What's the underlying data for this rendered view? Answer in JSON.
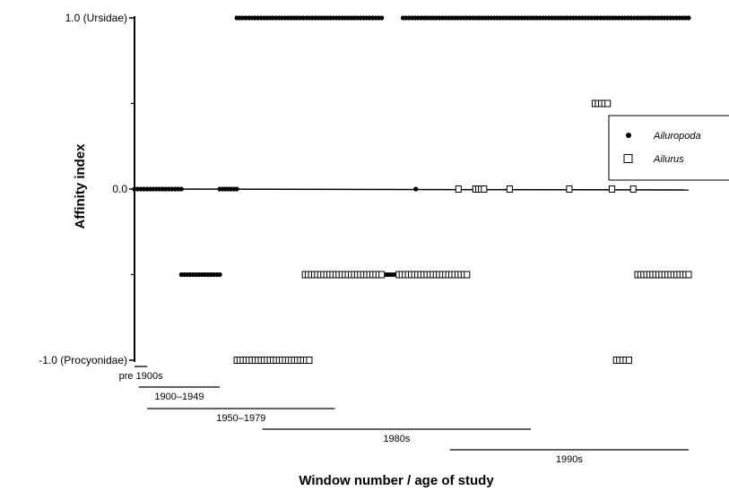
{
  "chart_data": {
    "type": "scatter",
    "xlabel": "Window number / age of study",
    "ylabel": "Affinity index",
    "ylim": [
      -1.0,
      1.0
    ],
    "x_range": [
      0,
      130
    ],
    "y_ticks": [
      {
        "value": 1.0,
        "label": "1.0 (Ursidae)"
      },
      {
        "value": 0.0,
        "label": "0.0"
      },
      {
        "value": -1.0,
        "label": "-1.0 (Procyonidae)"
      }
    ],
    "y_minor_ticks": [
      0.5,
      -0.5
    ],
    "legend_position": "right",
    "series": [
      {
        "name": "Ailuropoda",
        "marker": "filled-circle",
        "color": "#000000",
        "points": [
          {
            "x_start": 0,
            "x_end": 11,
            "y": 0.0
          },
          {
            "x_start": 11,
            "x_end": 20,
            "y": -0.5
          },
          {
            "x_start": 20,
            "x_end": 24,
            "y": 0.0
          },
          {
            "x_start": 24,
            "x_end": 58,
            "y": 1.0
          },
          {
            "x_start": 58,
            "x_end": 62,
            "y": -0.5
          },
          {
            "x_start": 63,
            "x_end": 68,
            "y": 1.0
          },
          {
            "x_start": 66,
            "x_end": 66,
            "y": 0.0
          },
          {
            "x_start": 68,
            "x_end": 130,
            "y": 1.0
          }
        ]
      },
      {
        "name": "Ailurus",
        "marker": "open-square",
        "color": "#000000",
        "points": [
          {
            "x_start": 24,
            "x_end": 41,
            "y": -1.0
          },
          {
            "x_start": 40,
            "x_end": 58,
            "y": -0.5
          },
          {
            "x_start": 62,
            "x_end": 78,
            "y": -0.5
          },
          {
            "x_start": 76,
            "x_end": 76,
            "y": 0.0
          },
          {
            "x_start": 80,
            "x_end": 82,
            "y": 0.0
          },
          {
            "x_start": 88,
            "x_end": 88,
            "y": 0.0
          },
          {
            "x_start": 102,
            "x_end": 102,
            "y": 0.0
          },
          {
            "x_start": 108,
            "x_end": 111,
            "y": 0.5
          },
          {
            "x_start": 112,
            "x_end": 112,
            "y": 0.0
          },
          {
            "x_start": 113,
            "x_end": 116,
            "y": -1.0
          },
          {
            "x_start": 117,
            "x_end": 117,
            "y": 0.0
          },
          {
            "x_start": 118,
            "x_end": 130,
            "y": -0.5
          }
        ]
      }
    ],
    "periods": [
      {
        "label": "pre 1900s",
        "x_start": 0,
        "x_end": 3
      },
      {
        "label": "1900–1949",
        "x_start": 1,
        "x_end": 20
      },
      {
        "label": "1950–1979",
        "x_start": 3,
        "x_end": 47
      },
      {
        "label": "1980s",
        "x_start": 30,
        "x_end": 93
      },
      {
        "label": "1990s",
        "x_start": 74,
        "x_end": 130
      }
    ]
  }
}
